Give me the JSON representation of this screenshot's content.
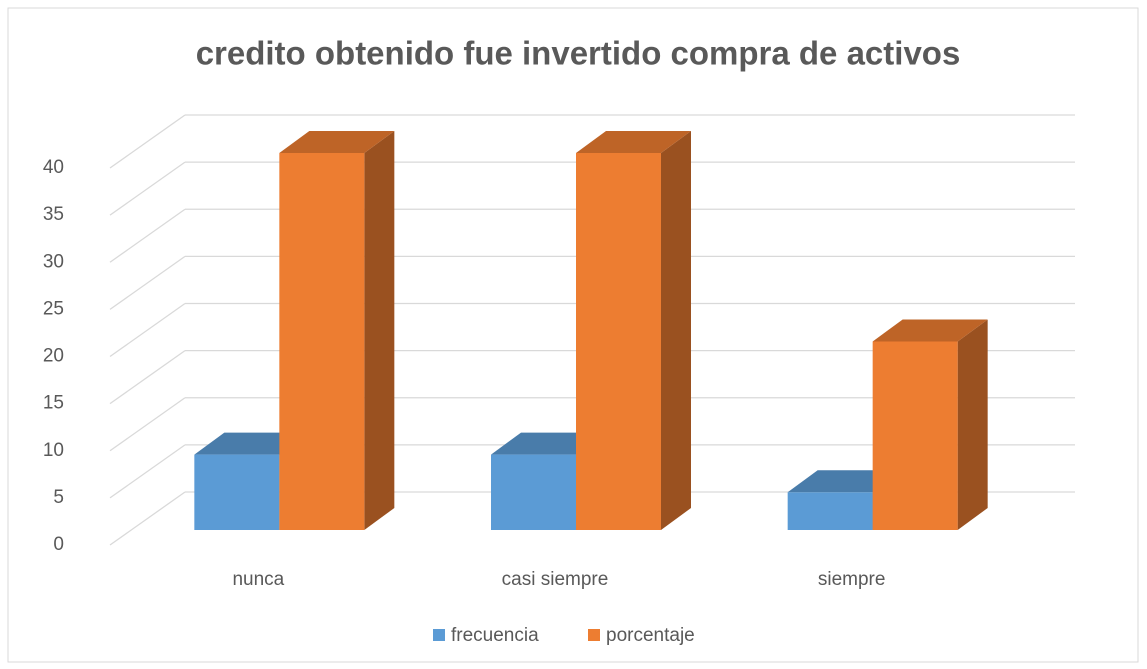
{
  "chart_data": {
    "type": "bar3d",
    "title": "credito obtenido fue invertido compra de activos",
    "categories": [
      "nunca",
      "casi siempre",
      "siempre"
    ],
    "series": [
      {
        "name": "frecuencia",
        "color": "#5b9bd5",
        "values": [
          8,
          8,
          4
        ]
      },
      {
        "name": "porcentaje",
        "color": "#ed7d31",
        "values": [
          40,
          40,
          20
        ]
      }
    ],
    "ylim": [
      0,
      40
    ],
    "yticks": [
      0,
      5,
      10,
      15,
      20,
      25,
      30,
      35,
      40
    ],
    "grid": true,
    "legend": "bottom"
  }
}
